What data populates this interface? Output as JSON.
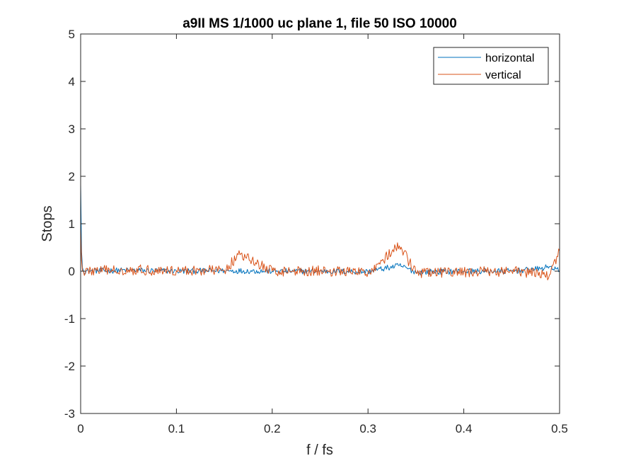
{
  "chart_data": {
    "type": "line",
    "title": "a9II MS 1/1000 uc plane 1, file 50 ISO 10000",
    "xlabel": "f / fs",
    "ylabel": "Stops",
    "xlim": [
      0,
      0.5
    ],
    "ylim": [
      -3,
      5
    ],
    "xticks": [
      0,
      0.1,
      0.2,
      0.3,
      0.4,
      0.5
    ],
    "xtick_labels": [
      "0",
      "0.1",
      "0.2",
      "0.3",
      "0.4",
      "0.5"
    ],
    "yticks": [
      -3,
      -2,
      -1,
      0,
      1,
      2,
      3,
      4,
      5
    ],
    "ytick_labels": [
      "-3",
      "-2",
      "-1",
      "0",
      "1",
      "2",
      "3",
      "4",
      "5"
    ],
    "grid": false,
    "legend_position": "top-right",
    "series": [
      {
        "name": "horizontal",
        "color": "#0072BD",
        "noise_amplitude": 0.06,
        "x": [
          0,
          0.001,
          0.002,
          0.003,
          0.05,
          0.1,
          0.15,
          0.2,
          0.25,
          0.3,
          0.333,
          0.35,
          0.4,
          0.45,
          0.48,
          0.49,
          0.5
        ],
        "y": [
          1.82,
          0.35,
          0.05,
          0.0,
          0.02,
          0.0,
          0.01,
          0.0,
          0.0,
          -0.01,
          0.12,
          -0.02,
          0.0,
          0.0,
          0.05,
          0.1,
          0.0
        ]
      },
      {
        "name": "vertical",
        "color": "#D95319",
        "noise_amplitude": 0.11,
        "x": [
          0,
          0.001,
          0.002,
          0.003,
          0.05,
          0.1,
          0.15,
          0.166,
          0.2,
          0.25,
          0.3,
          0.333,
          0.35,
          0.4,
          0.45,
          0.49,
          0.5
        ],
        "y": [
          0.92,
          0.2,
          0.0,
          0.0,
          0.03,
          0.01,
          0.02,
          0.35,
          0.0,
          0.01,
          -0.03,
          0.54,
          -0.04,
          -0.02,
          0.0,
          -0.08,
          0.43
        ]
      }
    ]
  }
}
